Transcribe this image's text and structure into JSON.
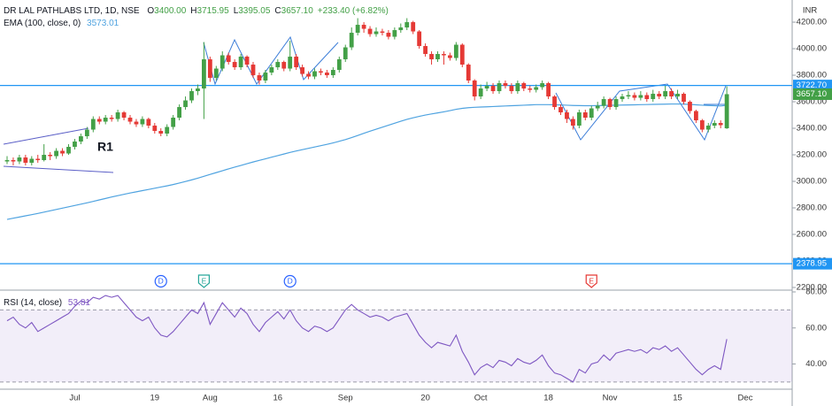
{
  "chart_data": [
    {
      "type": "candlestick",
      "title": "DR LAL PATHLABS LTD, 1D, NSE",
      "ohlc_legend": [
        {
          "key": "O",
          "text": "3400.00"
        },
        {
          "key": "H",
          "text": "3715.95"
        },
        {
          "key": "L",
          "text": "3395.05"
        },
        {
          "key": "C",
          "text": "3657.10"
        }
      ],
      "change": "+233.40 (+6.82%)",
      "currency": "INR",
      "up_color": "#43a047",
      "down_color": "#e53935",
      "categories": [
        null,
        null,
        null,
        null,
        null,
        null,
        null,
        null,
        null,
        null,
        null,
        "Jul",
        null,
        null,
        null,
        null,
        null,
        null,
        null,
        null,
        null,
        null,
        null,
        null,
        "19",
        null,
        null,
        null,
        null,
        null,
        null,
        null,
        null,
        "Aug",
        null,
        null,
        null,
        null,
        null,
        null,
        null,
        null,
        null,
        null,
        "16",
        null,
        null,
        null,
        null,
        null,
        null,
        null,
        null,
        null,
        null,
        "Sep",
        null,
        null,
        null,
        null,
        null,
        null,
        null,
        null,
        null,
        null,
        null,
        null,
        "20",
        null,
        null,
        null,
        null,
        null,
        null,
        null,
        null,
        "Oct",
        null,
        null,
        null,
        null,
        null,
        null,
        null,
        null,
        null,
        null,
        "18",
        null,
        null,
        null,
        null,
        null,
        null,
        null,
        null,
        null,
        "Nov",
        null,
        null,
        null,
        null,
        null,
        null,
        null,
        null,
        null,
        null,
        "15",
        null,
        null,
        null,
        null,
        null,
        null,
        null,
        null,
        null,
        null,
        "Dec",
        null
      ],
      "open": [
        3150,
        3160,
        3150,
        3180,
        3140,
        3170,
        3160,
        3200,
        3190,
        3230,
        3210,
        3260,
        3300,
        3340,
        3390,
        3470,
        3450,
        3480,
        3470,
        3520,
        3480,
        3450,
        3430,
        3470,
        3420,
        3380,
        3360,
        3410,
        3480,
        3560,
        3610,
        3680,
        3700,
        3920,
        3780,
        3850,
        3950,
        3900,
        3860,
        3940,
        3880,
        3800,
        3760,
        3820,
        3860,
        3900,
        3850,
        3940,
        3860,
        3810,
        3790,
        3830,
        3820,
        3800,
        3840,
        3920,
        4010,
        4120,
        4180,
        4150,
        4110,
        4130,
        4120,
        4090,
        4140,
        4160,
        4200,
        4130,
        4020,
        3960,
        3920,
        3960,
        3950,
        3930,
        4030,
        3880,
        3760,
        3640,
        3700,
        3720,
        3680,
        3740,
        3720,
        3680,
        3740,
        3700,
        3690,
        3710,
        3740,
        3640,
        3560,
        3520,
        3470,
        3420,
        3520,
        3480,
        3550,
        3570,
        3620,
        3560,
        3620,
        3640,
        3650,
        3630,
        3650,
        3620,
        3660,
        3640,
        3680,
        3640,
        3660,
        3600,
        3530,
        3460,
        3390,
        3420,
        3440,
        3400,
        null,
        null,
        null,
        null
      ],
      "high": [
        3190,
        3180,
        3200,
        3200,
        3190,
        3200,
        3280,
        3220,
        3250,
        3250,
        3280,
        3320,
        3360,
        3410,
        3490,
        3490,
        3500,
        3500,
        3540,
        3530,
        3500,
        3470,
        3490,
        3480,
        3440,
        3400,
        3430,
        3500,
        3580,
        3640,
        3700,
        3730,
        4050,
        3940,
        3870,
        3980,
        3970,
        3920,
        3960,
        3950,
        3900,
        3820,
        3840,
        3880,
        3920,
        3910,
        4060,
        3960,
        3880,
        3830,
        3850,
        3850,
        3840,
        3860,
        3940,
        4030,
        4160,
        4230,
        4200,
        4170,
        4160,
        4150,
        4140,
        4160,
        4190,
        4230,
        4210,
        4140,
        4040,
        3980,
        3980,
        3980,
        3970,
        4050,
        4040,
        3890,
        3770,
        3730,
        3750,
        3740,
        3760,
        3760,
        3740,
        3760,
        3750,
        3720,
        3730,
        3760,
        3750,
        3650,
        3580,
        3540,
        3490,
        3540,
        3540,
        3570,
        3600,
        3640,
        3630,
        3640,
        3660,
        3680,
        3670,
        3680,
        3670,
        3690,
        3680,
        3720,
        3700,
        3690,
        3670,
        3610,
        3540,
        3470,
        3440,
        3460,
        3460,
        3715.95,
        null,
        null,
        null,
        null
      ],
      "low": [
        3130,
        3120,
        3130,
        3120,
        3120,
        3140,
        3150,
        3160,
        3170,
        3190,
        3200,
        3240,
        3280,
        3320,
        3370,
        3430,
        3430,
        3450,
        3450,
        3460,
        3430,
        3410,
        3410,
        3400,
        3360,
        3340,
        3340,
        3390,
        3460,
        3540,
        3590,
        3650,
        3470,
        3750,
        3760,
        3830,
        3880,
        3840,
        3840,
        3860,
        3780,
        3730,
        3740,
        3800,
        3840,
        3830,
        3830,
        3840,
        3790,
        3770,
        3770,
        3800,
        3780,
        3780,
        3820,
        3900,
        3990,
        4100,
        4120,
        4090,
        4090,
        4100,
        4070,
        4070,
        4120,
        4140,
        4110,
        4000,
        3940,
        3880,
        3900,
        3880,
        3910,
        3910,
        3860,
        3740,
        3610,
        3620,
        3680,
        3660,
        3660,
        3700,
        3660,
        3660,
        3680,
        3670,
        3670,
        3690,
        3620,
        3540,
        3500,
        3440,
        3390,
        3400,
        3460,
        3460,
        3530,
        3550,
        3540,
        3540,
        3600,
        3620,
        3610,
        3610,
        3600,
        3600,
        3620,
        3620,
        3620,
        3620,
        3580,
        3510,
        3440,
        3370,
        3370,
        3400,
        3400,
        3395.05,
        null,
        null,
        null,
        null
      ],
      "close": [
        3160,
        3150,
        3180,
        3140,
        3170,
        3160,
        3200,
        3190,
        3230,
        3210,
        3260,
        3300,
        3340,
        3390,
        3470,
        3450,
        3480,
        3470,
        3520,
        3480,
        3450,
        3430,
        3470,
        3420,
        3380,
        3360,
        3410,
        3480,
        3560,
        3610,
        3680,
        3700,
        3920,
        3780,
        3850,
        3950,
        3900,
        3860,
        3940,
        3880,
        3800,
        3760,
        3820,
        3860,
        3900,
        3850,
        3940,
        3860,
        3810,
        3790,
        3830,
        3820,
        3800,
        3840,
        3920,
        4010,
        4120,
        4180,
        4150,
        4110,
        4130,
        4120,
        4090,
        4140,
        4160,
        4200,
        4130,
        4020,
        3960,
        3920,
        3960,
        3950,
        3930,
        4030,
        3880,
        3760,
        3640,
        3700,
        3720,
        3680,
        3740,
        3720,
        3680,
        3740,
        3700,
        3690,
        3710,
        3740,
        3640,
        3560,
        3520,
        3470,
        3420,
        3520,
        3480,
        3550,
        3570,
        3620,
        3560,
        3620,
        3640,
        3650,
        3630,
        3650,
        3620,
        3660,
        3640,
        3680,
        3640,
        3660,
        3600,
        3530,
        3460,
        3390,
        3420,
        3440,
        3423.7,
        3657.1,
        null,
        null,
        null,
        null
      ],
      "series": [
        {
          "name": "EMA (100, close, 0)",
          "last_label": "3573.01",
          "color": "#4fa3e0",
          "values": [
            2713,
            2722,
            2731,
            2740,
            2749,
            2758,
            2768,
            2778,
            2788,
            2798,
            2808,
            2818,
            2828,
            2838,
            2849,
            2860,
            2871,
            2882,
            2892,
            2902,
            2912,
            2921,
            2930,
            2939,
            2948,
            2957,
            2966,
            2976,
            2987,
            2999,
            3011,
            3024,
            3038,
            3052,
            3066,
            3080,
            3094,
            3107,
            3120,
            3133,
            3146,
            3158,
            3170,
            3182,
            3194,
            3206,
            3218,
            3229,
            3239,
            3249,
            3259,
            3269,
            3279,
            3290,
            3302,
            3315,
            3330,
            3346,
            3362,
            3378,
            3393,
            3408,
            3423,
            3438,
            3453,
            3467,
            3479,
            3490,
            3500,
            3508,
            3516,
            3524,
            3533,
            3543,
            3550,
            3555,
            3558,
            3560,
            3562,
            3564,
            3566,
            3568,
            3570,
            3572,
            3574,
            3576,
            3578,
            3578,
            3578,
            3577,
            3576,
            3574,
            3572,
            3571,
            3570,
            3570,
            3571,
            3572,
            3573,
            3574,
            3575,
            3576,
            3577,
            3578,
            3579,
            3580,
            3581,
            3582,
            3583,
            3583,
            3582,
            3580,
            3577,
            3574,
            3572,
            3570,
            3568,
            3573.01,
            null,
            null,
            null,
            null
          ]
        }
      ],
      "hlines": [
        {
          "value": 3722.7,
          "label": "3722.70",
          "color": "#2196f3"
        },
        {
          "value": 2378.95,
          "label": "2378.95",
          "color": "#2196f3"
        }
      ],
      "price_labels": [
        {
          "value": 3657.1,
          "label": "3657.10",
          "color": "#43a047"
        }
      ],
      "events": [
        {
          "index": 25,
          "label": "D",
          "color": "#2962ff"
        },
        {
          "index": 32,
          "label": "E",
          "color": "#26a69a"
        },
        {
          "index": 46,
          "label": "D",
          "color": "#2962ff"
        },
        {
          "index": 95,
          "label": "E",
          "color": "#e53935"
        }
      ],
      "annotations": [
        {
          "text": "R1",
          "color": "#e53935"
        }
      ],
      "ylim": [
        2180,
        4367
      ],
      "yticks": [
        {
          "value": 2200,
          "label": "2200.00"
        },
        {
          "value": 2400,
          "label": "2400.00"
        },
        {
          "value": 2600,
          "label": "2600.00"
        },
        {
          "value": 2800,
          "label": "2800.00"
        },
        {
          "value": 3000,
          "label": "3000.00"
        },
        {
          "value": 3200,
          "label": "3200.00"
        },
        {
          "value": 3400,
          "label": "3400.00"
        },
        {
          "value": 3600,
          "label": "3600.00"
        },
        {
          "value": 3800,
          "label": "3800.00"
        },
        {
          "value": 4000,
          "label": "4000.00"
        },
        {
          "value": 4200,
          "label": "4200.00"
        }
      ]
    },
    {
      "type": "line",
      "title": "RSI (14, close)",
      "last_label": "53.81",
      "color": "#7e57c2",
      "bands": [
        30,
        70
      ],
      "values": [
        64,
        66,
        62,
        60,
        63,
        58,
        60,
        62,
        64,
        66,
        68,
        72,
        75,
        74,
        77,
        76,
        78,
        77,
        78,
        74,
        70,
        66,
        64,
        66,
        60,
        56,
        55,
        58,
        62,
        66,
        70,
        68,
        74,
        62,
        68,
        74,
        70,
        66,
        71,
        68,
        62,
        58,
        63,
        66,
        69,
        65,
        70,
        64,
        60,
        58,
        61,
        60,
        58,
        60,
        65,
        70,
        73,
        70,
        68,
        66,
        67,
        66,
        64,
        66,
        67,
        68,
        62,
        56,
        52,
        49,
        52,
        51,
        50,
        56,
        47,
        41,
        34,
        38,
        40,
        38,
        42,
        41,
        39,
        43,
        41,
        40,
        42,
        45,
        39,
        35,
        34,
        32,
        30,
        37,
        35,
        40,
        41,
        45,
        42,
        46,
        47,
        48,
        47,
        48,
        46,
        49,
        48,
        50,
        47,
        49,
        45,
        41,
        37,
        34,
        37,
        39,
        37,
        53.81,
        null,
        null,
        null,
        null
      ],
      "ylim": [
        26,
        80
      ],
      "yticks": [
        {
          "value": 40,
          "label": "40.00"
        },
        {
          "value": 60,
          "label": "60.00"
        },
        {
          "value": 80,
          "label": "80.00"
        }
      ]
    }
  ]
}
